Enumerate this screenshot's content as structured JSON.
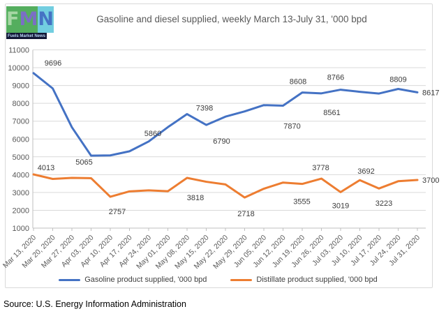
{
  "logo": {
    "letters": [
      "F",
      "M",
      "N"
    ],
    "caption": "Fuels Market News",
    "colors": {
      "f_bg": "#54ae5e",
      "f_letter": "#a6d7a4",
      "m_bg": "#54ae5e",
      "m_letter": "#7b6ec6",
      "n_bg": "#72cee0",
      "n_letter": "#4573c4",
      "caption_bg": "#121735"
    }
  },
  "title": "Gasoline and diesel supplied, weekly March 13-July 31, '000 bpd",
  "source": "Source: U.S. Energy Information Administration",
  "legend": [
    {
      "label": "Gasoline product supplied, '000 bpd",
      "color": "#4472C4"
    },
    {
      "label": "Distillate product supplied, '000 bpd",
      "color": "#ED7D31"
    }
  ],
  "chart_data": {
    "type": "line",
    "title": "Gasoline and diesel supplied, weekly March 13-July 31, '000 bpd",
    "xlabel": "",
    "ylabel": "",
    "ylim": [
      1000,
      11000
    ],
    "ytick": 1000,
    "grid": true,
    "legend_position": "bottom",
    "x_label_rotation": -45,
    "x": [
      "Mar 13, 2020",
      "Mar 20, 2020",
      "Mar 27, 2020",
      "Apr 03, 2020",
      "Apr 10, 2020",
      "Apr 17, 2020",
      "Apr 24, 2020",
      "May 01, 2020",
      "May 08, 2020",
      "May 15, 2020",
      "May 22, 2020",
      "May 29, 2020",
      "Jun 05, 2020",
      "Jun 12, 2020",
      "Jun 19, 2020",
      "Jun 26, 2020",
      "Jul 03, 2020",
      "Jul 10, 2020",
      "Jul 17, 2020",
      "Jul 24, 2020",
      "Jul 31, 2020"
    ],
    "series": [
      {
        "name": "Gasoline product supplied, '000 bpd",
        "color": "#4472C4",
        "values": [
          9696,
          8837,
          6659,
          5065,
          5081,
          5311,
          5860,
          6664,
          7398,
          6790,
          7253,
          7549,
          7900,
          7870,
          8608,
          8561,
          8766,
          8648,
          8550,
          8809,
          8617
        ],
        "point_labels": [
          {
            "i": 0,
            "text": "9696",
            "dx": 28,
            "dy": -11
          },
          {
            "i": 3,
            "text": "5065",
            "dx": -10,
            "dy": 13
          },
          {
            "i": 6,
            "text": "5860",
            "dx": 6,
            "dy": -8
          },
          {
            "i": 8,
            "text": "7398",
            "dx": 25,
            "dy": -5
          },
          {
            "i": 9,
            "text": "6790",
            "dx": 22,
            "dy": 27
          },
          {
            "i": 13,
            "text": "7870",
            "dx": 13,
            "dy": 33
          },
          {
            "i": 14,
            "text": "8608",
            "dx": -6,
            "dy": -12
          },
          {
            "i": 15,
            "text": "8561",
            "dx": 15,
            "dy": 31
          },
          {
            "i": 16,
            "text": "8766",
            "dx": -7,
            "dy": -14
          },
          {
            "i": 19,
            "text": "8809",
            "dx": 0,
            "dy": -10
          },
          {
            "i": 20,
            "text": "8617",
            "dx": 7,
            "dy": 4,
            "anchor": "start"
          }
        ]
      },
      {
        "name": "Distillate product supplied, '000 bpd",
        "color": "#ED7D31",
        "values": [
          4013,
          3760,
          3820,
          3800,
          2757,
          3060,
          3120,
          3070,
          3818,
          3600,
          3450,
          2718,
          3210,
          3555,
          3480,
          3778,
          3019,
          3692,
          3223,
          3630,
          3700
        ],
        "point_labels": [
          {
            "i": 0,
            "text": "4013",
            "dx": 18,
            "dy": -6
          },
          {
            "i": 4,
            "text": "2757",
            "dx": 10,
            "dy": 25
          },
          {
            "i": 8,
            "text": "3818",
            "dx": 12,
            "dy": 32
          },
          {
            "i": 11,
            "text": "2718",
            "dx": 2,
            "dy": 27
          },
          {
            "i": 13,
            "text": "3555",
            "dx": 27,
            "dy": 31
          },
          {
            "i": 15,
            "text": "3778",
            "dx": -1,
            "dy": -12
          },
          {
            "i": 16,
            "text": "3019",
            "dx": 0,
            "dy": 23
          },
          {
            "i": 17,
            "text": "3692",
            "dx": 9,
            "dy": -9
          },
          {
            "i": 18,
            "text": "3223",
            "dx": 7,
            "dy": 25
          },
          {
            "i": 20,
            "text": "3700",
            "dx": 7,
            "dy": 4,
            "anchor": "start"
          }
        ]
      }
    ]
  }
}
